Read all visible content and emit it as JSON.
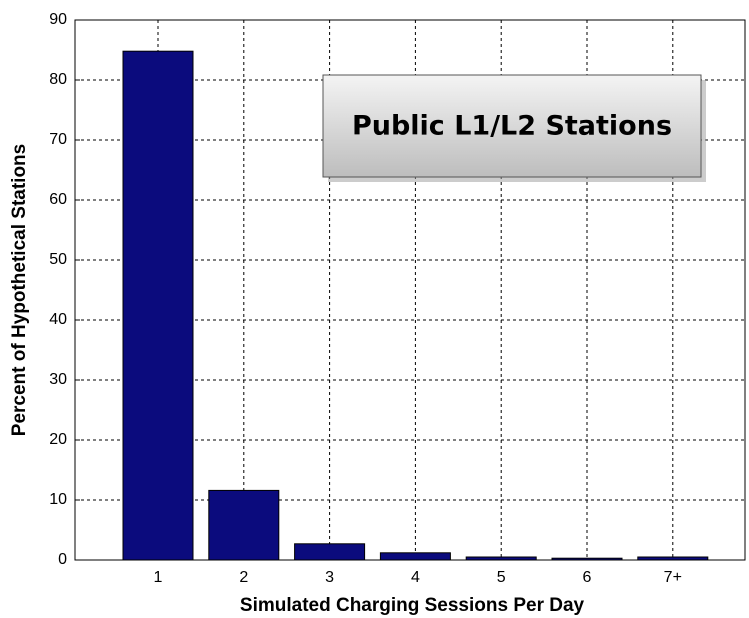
{
  "chart_data": {
    "type": "bar",
    "annotation": "Public L1/L2 Stations",
    "x_label": "Simulated Charging Sessions Per Day",
    "y_label": "Percent of Hypothetical Stations",
    "categories": [
      "1",
      "2",
      "3",
      "4",
      "5",
      "6",
      "7+"
    ],
    "values": [
      84.8,
      11.6,
      2.7,
      1.2,
      0.5,
      0.3,
      0.5
    ],
    "color": "#0b0b7d",
    "ylim": [
      0,
      90
    ],
    "yticks": [
      0,
      10,
      20,
      30,
      40,
      50,
      60,
      70,
      80,
      90
    ],
    "grid": true
  }
}
